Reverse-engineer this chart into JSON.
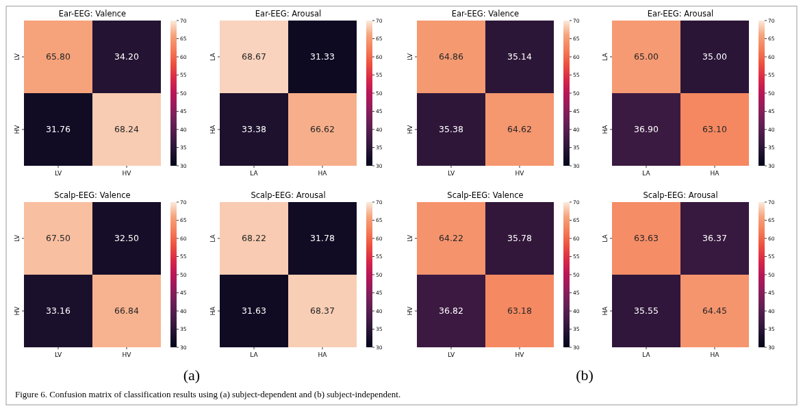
{
  "chart_data": [
    {
      "type": "heatmap",
      "title": "Ear-EEG: Valence",
      "categories": [
        "LV",
        "HV"
      ],
      "y_categories": [
        "LV",
        "HV"
      ],
      "cells": [
        [
          65.8,
          34.2
        ],
        [
          31.76,
          68.24
        ]
      ],
      "cell_labels": [
        [
          "65.80",
          "34.20"
        ],
        [
          "31.76",
          "68.24"
        ]
      ],
      "clim": [
        30,
        70
      ],
      "cticks": [
        30,
        35,
        40,
        45,
        50,
        55,
        60,
        65,
        70
      ]
    },
    {
      "type": "heatmap",
      "title": "Ear-EEG: Arousal",
      "categories": [
        "LA",
        "HA"
      ],
      "y_categories": [
        "LA",
        "HA"
      ],
      "cells": [
        [
          68.67,
          31.33
        ],
        [
          33.38,
          66.62
        ]
      ],
      "cell_labels": [
        [
          "68.67",
          "31.33"
        ],
        [
          "33.38",
          "66.62"
        ]
      ],
      "clim": [
        30,
        70
      ],
      "cticks": [
        30,
        35,
        40,
        45,
        50,
        55,
        60,
        65,
        70
      ]
    },
    {
      "type": "heatmap",
      "title": "Ear-EEG: Valence",
      "categories": [
        "LV",
        "HV"
      ],
      "y_categories": [
        "LV",
        "HV"
      ],
      "cells": [
        [
          64.86,
          35.14
        ],
        [
          35.38,
          64.62
        ]
      ],
      "cell_labels": [
        [
          "64.86",
          "35.14"
        ],
        [
          "35.38",
          "64.62"
        ]
      ],
      "clim": [
        30,
        70
      ],
      "cticks": [
        30,
        35,
        40,
        45,
        50,
        55,
        60,
        65,
        70
      ]
    },
    {
      "type": "heatmap",
      "title": "Ear-EEG: Arousal",
      "categories": [
        "LA",
        "HA"
      ],
      "y_categories": [
        "LA",
        "HA"
      ],
      "cells": [
        [
          65.0,
          35.0
        ],
        [
          36.9,
          63.1
        ]
      ],
      "cell_labels": [
        [
          "65.00",
          "35.00"
        ],
        [
          "36.90",
          "63.10"
        ]
      ],
      "clim": [
        30,
        70
      ],
      "cticks": [
        30,
        35,
        40,
        45,
        50,
        55,
        60,
        65,
        70
      ]
    },
    {
      "type": "heatmap",
      "title": "Scalp-EEG: Valence",
      "categories": [
        "LV",
        "HV"
      ],
      "y_categories": [
        "LV",
        "HV"
      ],
      "cells": [
        [
          67.5,
          32.5
        ],
        [
          33.16,
          66.84
        ]
      ],
      "cell_labels": [
        [
          "67.50",
          "32.50"
        ],
        [
          "33.16",
          "66.84"
        ]
      ],
      "clim": [
        30,
        70
      ],
      "cticks": [
        30,
        35,
        40,
        45,
        50,
        55,
        60,
        65,
        70
      ],
      "annotations": [
        "(a)"
      ]
    },
    {
      "type": "heatmap",
      "title": "Scalp-EEG: Arousal",
      "categories": [
        "LA",
        "HA"
      ],
      "y_categories": [
        "LA",
        "HA"
      ],
      "cells": [
        [
          68.22,
          31.78
        ],
        [
          31.63,
          68.37
        ]
      ],
      "cell_labels": [
        [
          "68.22",
          "31.78"
        ],
        [
          "31.63",
          "68.37"
        ]
      ],
      "clim": [
        30,
        70
      ],
      "cticks": [
        30,
        35,
        40,
        45,
        50,
        55,
        60,
        65,
        70
      ]
    },
    {
      "type": "heatmap",
      "title": "Scalp-EEG: Valence",
      "categories": [
        "LV",
        "HV"
      ],
      "y_categories": [
        "LV",
        "HV"
      ],
      "cells": [
        [
          64.22,
          35.78
        ],
        [
          36.82,
          63.18
        ]
      ],
      "cell_labels": [
        [
          "64.22",
          "35.78"
        ],
        [
          "36.82",
          "63.18"
        ]
      ],
      "clim": [
        30,
        70
      ],
      "cticks": [
        30,
        35,
        40,
        45,
        50,
        55,
        60,
        65,
        70
      ],
      "annotations": [
        "(b)"
      ]
    },
    {
      "type": "heatmap",
      "title": "Scalp-EEG: Arousal",
      "categories": [
        "LA",
        "HA"
      ],
      "y_categories": [
        "LA",
        "HA"
      ],
      "cells": [
        [
          63.63,
          36.37
        ],
        [
          35.55,
          64.45
        ]
      ],
      "cell_labels": [
        [
          "63.63",
          "36.37"
        ],
        [
          "35.55",
          "64.45"
        ]
      ],
      "clim": [
        30,
        70
      ],
      "cticks": [
        30,
        35,
        40,
        45,
        50,
        55,
        60,
        65,
        70
      ],
      "annotations": [
        "Figure 6. Confusion matrix of classification results using (a) subject-dependent and (b) subject-independent."
      ]
    }
  ]
}
